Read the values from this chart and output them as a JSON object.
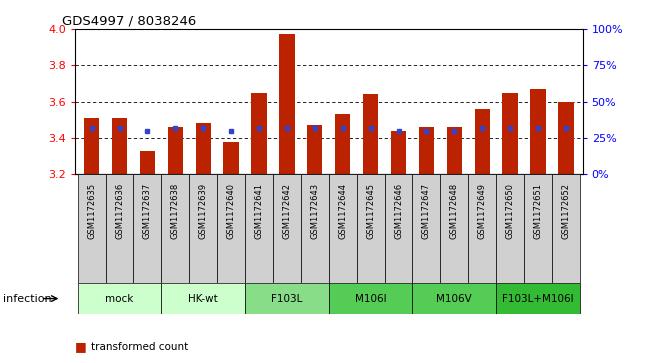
{
  "title": "GDS4997 / 8038246",
  "samples": [
    "GSM1172635",
    "GSM1172636",
    "GSM1172637",
    "GSM1172638",
    "GSM1172639",
    "GSM1172640",
    "GSM1172641",
    "GSM1172642",
    "GSM1172643",
    "GSM1172644",
    "GSM1172645",
    "GSM1172646",
    "GSM1172647",
    "GSM1172648",
    "GSM1172649",
    "GSM1172650",
    "GSM1172651",
    "GSM1172652"
  ],
  "transformed_counts": [
    3.51,
    3.51,
    3.33,
    3.46,
    3.48,
    3.38,
    3.65,
    3.97,
    3.47,
    3.53,
    3.64,
    3.44,
    3.46,
    3.46,
    3.56,
    3.65,
    3.67,
    3.6
  ],
  "percentile_values": [
    3.455,
    3.455,
    3.44,
    3.455,
    3.455,
    3.44,
    3.455,
    3.455,
    3.455,
    3.455,
    3.455,
    3.44,
    3.44,
    3.44,
    3.455,
    3.455,
    3.455,
    3.455
  ],
  "groups": [
    {
      "label": "mock",
      "start": 0,
      "end": 2,
      "color": "#ccffcc"
    },
    {
      "label": "HK-wt",
      "start": 3,
      "end": 5,
      "color": "#ccffcc"
    },
    {
      "label": "F103L",
      "start": 6,
      "end": 8,
      "color": "#88dd88"
    },
    {
      "label": "M106I",
      "start": 9,
      "end": 11,
      "color": "#55cc55"
    },
    {
      "label": "M106V",
      "start": 12,
      "end": 14,
      "color": "#55cc55"
    },
    {
      "label": "F103L+M106I",
      "start": 15,
      "end": 17,
      "color": "#33bb33"
    }
  ],
  "bar_color": "#bb2200",
  "dot_color": "#3344cc",
  "ylim_left": [
    3.2,
    4.0
  ],
  "ylim_right": [
    0,
    100
  ],
  "yticks_left": [
    3.2,
    3.4,
    3.6,
    3.8,
    4.0
  ],
  "yticks_right": [
    0,
    25,
    50,
    75,
    100
  ],
  "bar_bottom": 3.2,
  "sample_box_color": "#d0d0d0",
  "infection_label": "infection"
}
